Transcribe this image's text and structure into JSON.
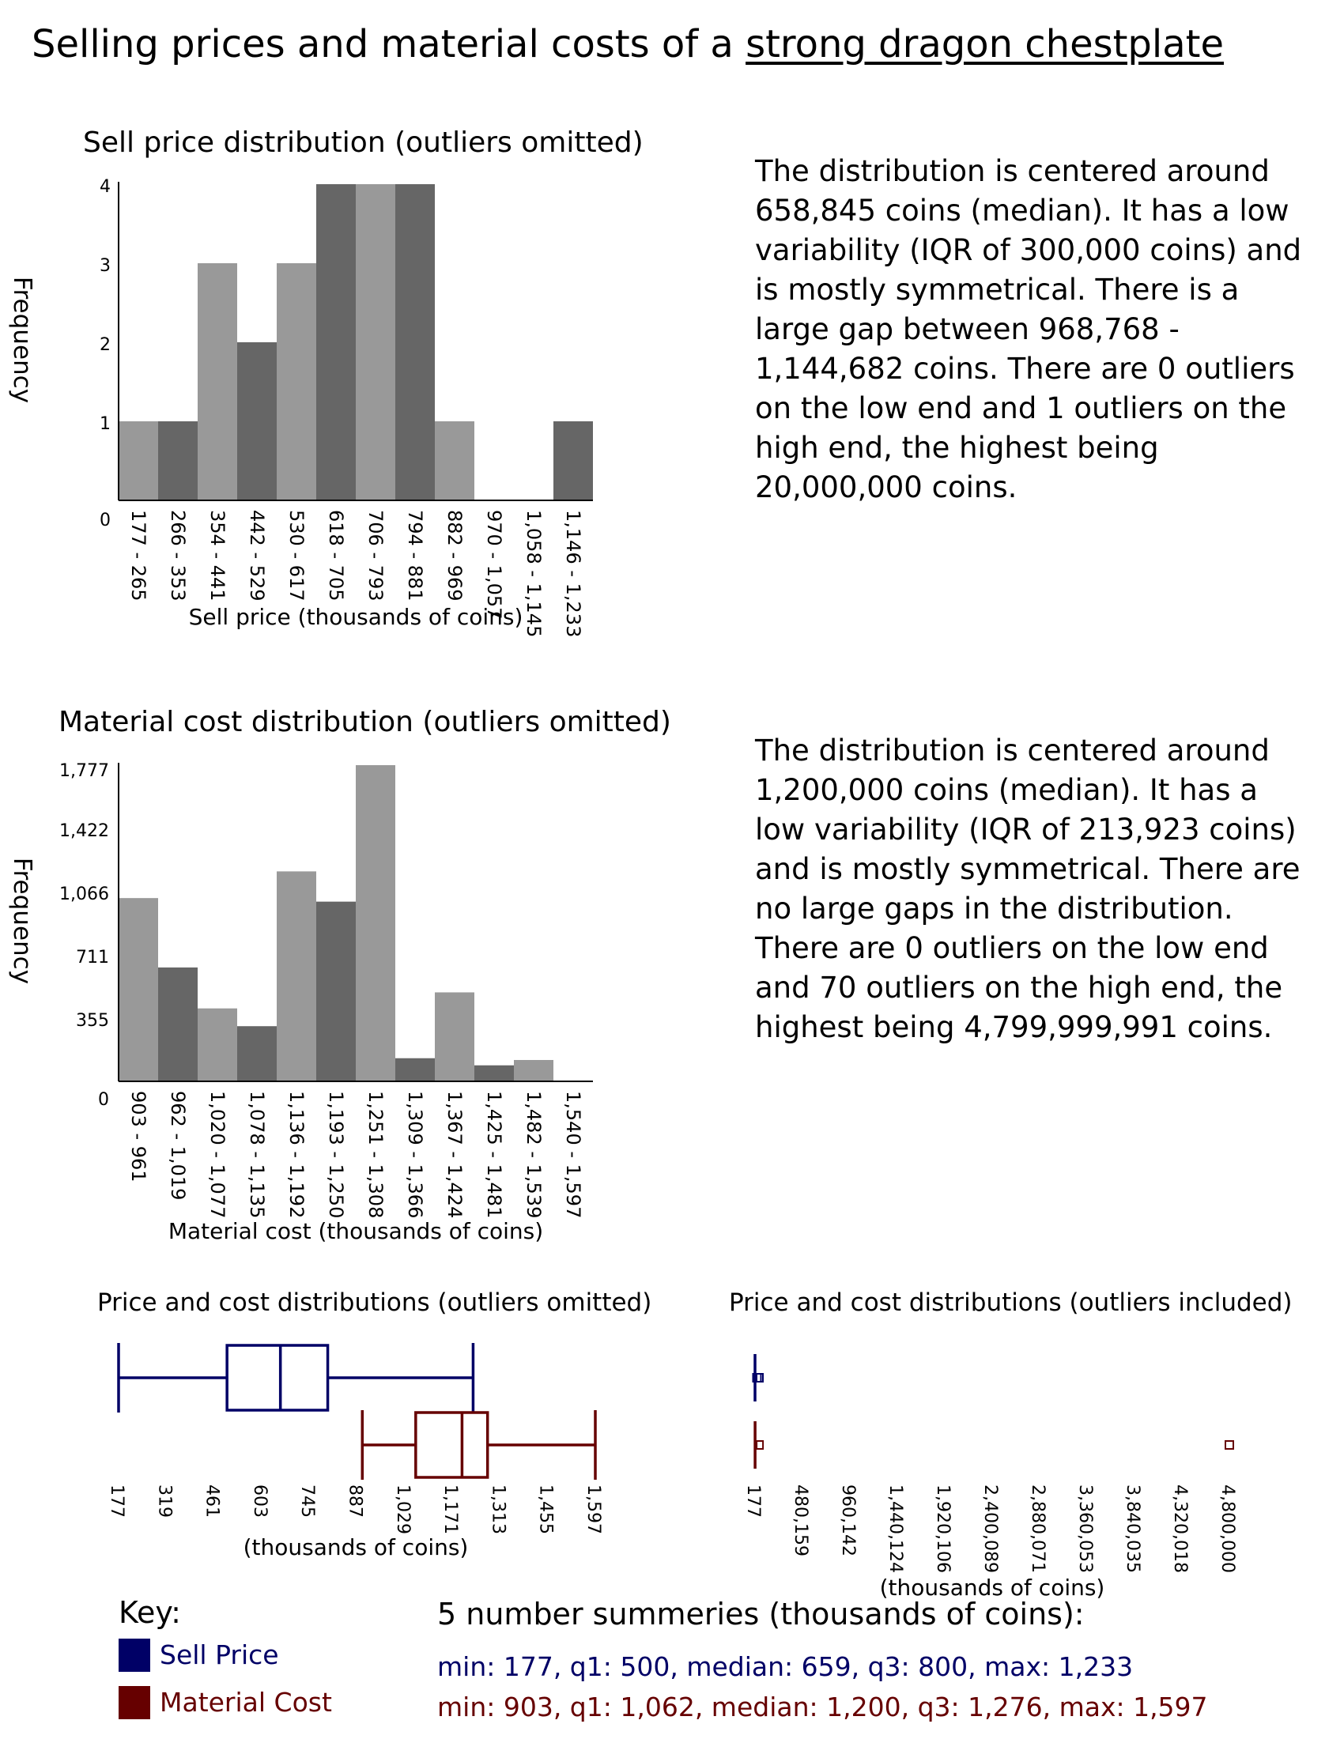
{
  "title": {
    "prefix": "Selling prices and material costs of a ",
    "item": "strong dragon chestplate"
  },
  "colors": {
    "light_bar": "#999999",
    "dark_bar": "#666666",
    "sell": "#000066",
    "cost": "#660000"
  },
  "descriptions": {
    "sell": "The distribution is centered around 658,845 coins (median). It has a low variability (IQR of 300,000 coins) and is mostly symmetrical. There is a large gap between 968,768 - 1,144,682 coins. There are 0 outliers on the low end and 1 outliers on the high end, the highest being 20,000,000 coins.",
    "cost": "The distribution is centered around 1,200,000 coins (median). It has a low variability (IQR of 213,923 coins) and is mostly symmetrical. There are no large gaps in the distribution. There are 0 outliers on the low end and 70 outliers on the high end, the highest being 4,799,999,991 coins."
  },
  "key": {
    "title": "Key:",
    "sell_label": "Sell Price",
    "cost_label": "Material Cost"
  },
  "summaries": {
    "title": "5 number summeries (thousands of coins):",
    "sell": "min: 177, q1: 500, median: 659, q3: 800, max: 1,233",
    "cost": "min: 903, q1: 1,062, median: 1,200, q3: 1,276, max: 1,597"
  },
  "chart_data": [
    {
      "type": "bar",
      "title": "Sell price distribution (outliers omitted)",
      "xlabel": "Sell price (thousands of coins)",
      "ylabel": "Frequency",
      "categories": [
        "177 - 265",
        "266 - 353",
        "354 - 441",
        "442 - 529",
        "530 - 617",
        "618 - 705",
        "706 - 793",
        "794 - 881",
        "882 - 969",
        "970 - 1,057",
        "1,058 - 1,145",
        "1,146 - 1,233"
      ],
      "values": [
        1,
        1,
        3,
        2,
        3,
        4,
        4,
        4,
        1,
        0,
        0,
        1
      ],
      "yticks": [
        "0",
        "1",
        "2",
        "3",
        "4"
      ],
      "ylim": [
        0,
        4
      ]
    },
    {
      "type": "bar",
      "title": "Material cost distribution (outliers omitted)",
      "xlabel": "Material cost (thousands of coins)",
      "ylabel": "Frequency",
      "categories": [
        "903 - 961",
        "962 - 1,019",
        "1,020 - 1,077",
        "1,078 - 1,135",
        "1,136 - 1,192",
        "1,193 - 1,250",
        "1,251 - 1,308",
        "1,309 - 1,366",
        "1,367 - 1,424",
        "1,425 - 1,481",
        "1,482 - 1,539",
        "1,540 - 1,597"
      ],
      "values": [
        1030,
        640,
        410,
        310,
        1180,
        1010,
        1777,
        130,
        500,
        90,
        120,
        3
      ],
      "yticks": [
        "0",
        "355",
        "711",
        "1,066",
        "1,422",
        "1,777"
      ],
      "ylim": [
        0,
        1777
      ]
    },
    {
      "type": "box",
      "title": "Price and cost distributions (outliers omitted)",
      "xlabel": "(thousands of coins)",
      "xticks": [
        "177",
        "319",
        "461",
        "603",
        "745",
        "887",
        "1,029",
        "1,171",
        "1,313",
        "1,455",
        "1,597"
      ],
      "xlim": [
        177,
        1597
      ],
      "series": [
        {
          "min": 177,
          "q1": 500,
          "median": 659,
          "q3": 800,
          "max": 1233
        },
        {
          "min": 903,
          "q1": 1062,
          "median": 1200,
          "q3": 1276,
          "max": 1597
        }
      ]
    },
    {
      "type": "box",
      "title": "Price and cost distributions (outliers included)",
      "xlabel": "(thousands of coins)",
      "xticks": [
        "177",
        "480,159",
        "960,142",
        "1,440,124",
        "1,920,106",
        "2,400,089",
        "2,880,071",
        "3,360,053",
        "3,840,035",
        "4,320,018",
        "4,800,000"
      ],
      "xlim": [
        177,
        4800000
      ],
      "series": [
        {
          "min": 177,
          "q1": 500,
          "median": 659,
          "q3": 800,
          "max": 1233,
          "outliers": [
            20000
          ]
        },
        {
          "min": 903,
          "q1": 1062,
          "median": 1200,
          "q3": 1276,
          "max": 1597,
          "outliers": [
            4800000
          ]
        }
      ]
    }
  ]
}
